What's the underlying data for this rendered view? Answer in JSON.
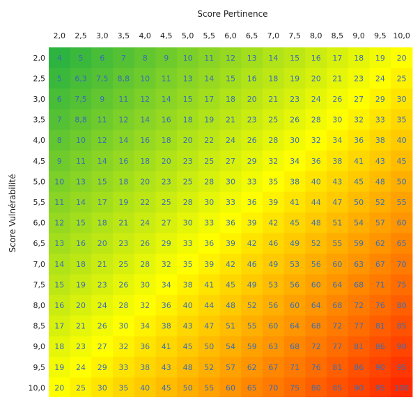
{
  "chart_data": {
    "type": "heatmap",
    "xlabel": "Score Pertinence",
    "ylabel": "Score Vulnérabilité",
    "x_categories": [
      "2,0",
      "2,5",
      "3,0",
      "3,5",
      "4,0",
      "4,5",
      "5,0",
      "5,5",
      "6,0",
      "6,5",
      "7,0",
      "7,5",
      "8,0",
      "8,5",
      "9,0",
      "9,5",
      "10,0"
    ],
    "y_categories": [
      "2,0",
      "2,5",
      "3,0",
      "3,5",
      "4,0",
      "4,5",
      "5,0",
      "5,5",
      "6,0",
      "6,5",
      "7,0",
      "7,5",
      "8,0",
      "8,5",
      "9,0",
      "9,5",
      "10,0"
    ],
    "values": [
      [
        "4",
        "5",
        "6",
        "7",
        "8",
        "9",
        "10",
        "11",
        "12",
        "13",
        "14",
        "15",
        "16",
        "17",
        "18",
        "19",
        "20"
      ],
      [
        "5",
        "6,3",
        "7,5",
        "8,8",
        "10",
        "11",
        "13",
        "14",
        "15",
        "16",
        "18",
        "19",
        "20",
        "21",
        "23",
        "24",
        "25"
      ],
      [
        "6",
        "7,5",
        "9",
        "11",
        "12",
        "14",
        "15",
        "17",
        "18",
        "20",
        "21",
        "23",
        "24",
        "26",
        "27",
        "29",
        "30"
      ],
      [
        "7",
        "8,8",
        "11",
        "12",
        "14",
        "16",
        "18",
        "19",
        "21",
        "23",
        "25",
        "26",
        "28",
        "30",
        "32",
        "33",
        "35"
      ],
      [
        "8",
        "10",
        "12",
        "14",
        "16",
        "18",
        "20",
        "22",
        "24",
        "26",
        "28",
        "30",
        "32",
        "34",
        "36",
        "38",
        "40"
      ],
      [
        "9",
        "11",
        "14",
        "16",
        "18",
        "20",
        "23",
        "25",
        "27",
        "29",
        "32",
        "34",
        "36",
        "38",
        "41",
        "43",
        "45"
      ],
      [
        "10",
        "13",
        "15",
        "18",
        "20",
        "23",
        "25",
        "28",
        "30",
        "33",
        "35",
        "38",
        "40",
        "43",
        "45",
        "48",
        "50"
      ],
      [
        "11",
        "14",
        "17",
        "19",
        "22",
        "25",
        "28",
        "30",
        "33",
        "36",
        "39",
        "41",
        "44",
        "47",
        "50",
        "52",
        "55"
      ],
      [
        "12",
        "15",
        "18",
        "21",
        "24",
        "27",
        "30",
        "33",
        "36",
        "39",
        "42",
        "45",
        "48",
        "51",
        "54",
        "57",
        "60"
      ],
      [
        "13",
        "16",
        "20",
        "23",
        "26",
        "29",
        "33",
        "36",
        "39",
        "42",
        "46",
        "49",
        "52",
        "55",
        "59",
        "62",
        "65"
      ],
      [
        "14",
        "18",
        "21",
        "25",
        "28",
        "32",
        "35",
        "39",
        "42",
        "46",
        "49",
        "53",
        "56",
        "60",
        "63",
        "67",
        "70"
      ],
      [
        "15",
        "19",
        "23",
        "26",
        "30",
        "34",
        "38",
        "41",
        "45",
        "49",
        "53",
        "56",
        "60",
        "64",
        "68",
        "71",
        "75"
      ],
      [
        "16",
        "20",
        "24",
        "28",
        "32",
        "36",
        "40",
        "44",
        "48",
        "52",
        "56",
        "60",
        "64",
        "68",
        "72",
        "76",
        "80"
      ],
      [
        "17",
        "21",
        "26",
        "30",
        "34",
        "38",
        "43",
        "47",
        "51",
        "55",
        "60",
        "64",
        "68",
        "72",
        "77",
        "81",
        "85"
      ],
      [
        "18",
        "23",
        "27",
        "32",
        "36",
        "41",
        "45",
        "50",
        "54",
        "59",
        "63",
        "68",
        "72",
        "77",
        "81",
        "86",
        "90"
      ],
      [
        "19",
        "24",
        "29",
        "33",
        "38",
        "43",
        "48",
        "52",
        "57",
        "62",
        "67",
        "71",
        "76",
        "81",
        "86",
        "90",
        "95"
      ],
      [
        "20",
        "25",
        "30",
        "35",
        "40",
        "45",
        "50",
        "55",
        "60",
        "65",
        "70",
        "75",
        "80",
        "85",
        "90",
        "95",
        "100"
      ]
    ],
    "color_scale": [
      "#2db340",
      "#ffff00",
      "#ff2a00"
    ],
    "cell_text_color": "#3a6db5",
    "legend": "none",
    "grid": false
  }
}
